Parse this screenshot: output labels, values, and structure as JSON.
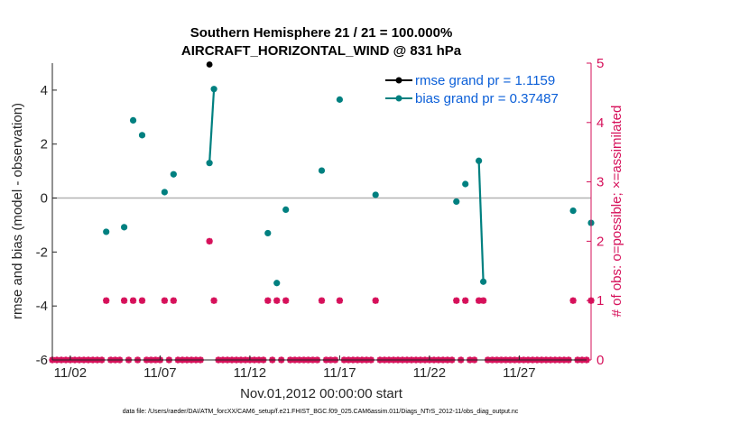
{
  "chart_data": {
    "type": "scatter",
    "title_line1": "Southern Hemisphere 21 / 21 = 100.000%",
    "title_line2": "AIRCRAFT_HORIZONTAL_WIND @ 831 hPa",
    "xlabel": "Nov.01,2012 00:00:00 start",
    "ylabel_left": "rmse and bias (model - observation)",
    "ylabel_right": "# of obs: o=possible; ×=assimilated",
    "footer": "data file: /Users/raeder/DAI/ATM_forcXX/CAM6_setup/f.e21.FHIST_BGC.f09_025.CAM6assim.011/Diags_NTrS_2012-11/obs_diag_output.nc",
    "xlim": [
      0.5,
      30.5
    ],
    "ylim_left": [
      -6,
      5
    ],
    "ylim_right": [
      0,
      5
    ],
    "x_ticks": [
      1.5,
      6.5,
      11.5,
      16.5,
      21.5,
      26.5
    ],
    "x_tick_labels": [
      "11/02",
      "11/07",
      "11/12",
      "11/17",
      "11/22",
      "11/27"
    ],
    "y_ticks_left": [
      -6,
      -4,
      -2,
      0,
      2,
      4
    ],
    "y_tick_labels_left": [
      "-6",
      "-4",
      "-2",
      "0",
      "2",
      "4"
    ],
    "y_ticks_right": [
      0,
      1,
      2,
      3,
      4,
      5
    ],
    "y_tick_labels_right": [
      "0",
      "1",
      "2",
      "3",
      "4",
      "5"
    ],
    "zero_line": 0,
    "legend_position": "top-right",
    "colors": {
      "rmse": "#000000",
      "bias": "#008080",
      "obs": "#d6105a",
      "zero": "#b3b3b3",
      "legend_text": "#0b5fd8",
      "axis": "#262626"
    },
    "series": [
      {
        "name": "rmse grand pr = 1.1159",
        "kind": "rmse",
        "points": [
          [
            9.25,
            4.95
          ]
        ]
      },
      {
        "name": "bias grand pr = 0.37487",
        "kind": "bias",
        "segments": [
          [
            [
              3.5,
              -1.25
            ]
          ],
          [
            [
              4.5,
              -1.08
            ]
          ],
          [
            [
              5.0,
              2.88
            ]
          ],
          [
            [
              5.5,
              2.33
            ]
          ],
          [
            [
              6.75,
              0.22
            ]
          ],
          [
            [
              7.25,
              0.88
            ]
          ],
          [
            [
              9.25,
              1.3
            ],
            [
              9.5,
              4.04
            ]
          ],
          [
            [
              12.5,
              -1.3
            ]
          ],
          [
            [
              13.0,
              -3.15
            ]
          ],
          [
            [
              13.5,
              -0.43
            ]
          ],
          [
            [
              15.5,
              1.02
            ]
          ],
          [
            [
              16.5,
              3.65
            ]
          ],
          [
            [
              18.5,
              0.12
            ]
          ],
          [
            [
              23.0,
              -0.13
            ]
          ],
          [
            [
              23.5,
              0.52
            ]
          ],
          [
            [
              24.25,
              1.38
            ],
            [
              24.5,
              -3.1
            ]
          ],
          [
            [
              29.5,
              -0.47
            ]
          ],
          [
            [
              30.5,
              -0.92
            ]
          ]
        ]
      },
      {
        "name": "obs possible",
        "kind": "obs_possible",
        "points": [
          [
            0.5,
            0
          ],
          [
            0.75,
            0
          ],
          [
            1.0,
            0
          ],
          [
            1.25,
            0
          ],
          [
            1.5,
            0
          ],
          [
            1.75,
            0
          ],
          [
            2.0,
            0
          ],
          [
            2.25,
            0
          ],
          [
            2.5,
            0
          ],
          [
            2.75,
            0
          ],
          [
            3.0,
            0
          ],
          [
            3.25,
            0
          ],
          [
            3.5,
            1
          ],
          [
            3.75,
            0
          ],
          [
            4.0,
            0
          ],
          [
            4.25,
            0
          ],
          [
            4.5,
            1
          ],
          [
            4.75,
            0
          ],
          [
            5.0,
            1
          ],
          [
            5.25,
            0
          ],
          [
            5.5,
            1
          ],
          [
            5.75,
            0
          ],
          [
            6.0,
            0
          ],
          [
            6.25,
            0
          ],
          [
            6.5,
            0
          ],
          [
            6.75,
            1
          ],
          [
            7.0,
            0
          ],
          [
            7.25,
            1
          ],
          [
            7.5,
            0
          ],
          [
            7.75,
            0
          ],
          [
            8.0,
            0
          ],
          [
            8.25,
            0
          ],
          [
            8.5,
            0
          ],
          [
            8.75,
            0
          ],
          [
            9.25,
            2
          ],
          [
            9.5,
            1
          ],
          [
            9.75,
            0
          ],
          [
            10.0,
            0
          ],
          [
            10.25,
            0
          ],
          [
            10.5,
            0
          ],
          [
            10.75,
            0
          ],
          [
            11.0,
            0
          ],
          [
            11.25,
            0
          ],
          [
            11.5,
            0
          ],
          [
            11.75,
            0
          ],
          [
            12.0,
            0
          ],
          [
            12.25,
            0
          ],
          [
            12.5,
            1
          ],
          [
            12.75,
            0
          ],
          [
            13.0,
            1
          ],
          [
            13.25,
            0
          ],
          [
            13.5,
            1
          ],
          [
            13.75,
            0
          ],
          [
            14.0,
            0
          ],
          [
            14.25,
            0
          ],
          [
            14.5,
            0
          ],
          [
            14.75,
            0
          ],
          [
            15.0,
            0
          ],
          [
            15.25,
            0
          ],
          [
            15.5,
            1
          ],
          [
            15.75,
            0
          ],
          [
            16.0,
            0
          ],
          [
            16.25,
            0
          ],
          [
            16.5,
            1
          ],
          [
            16.75,
            0
          ],
          [
            17.0,
            0
          ],
          [
            17.25,
            0
          ],
          [
            17.5,
            0
          ],
          [
            17.75,
            0
          ],
          [
            18.0,
            0
          ],
          [
            18.25,
            0
          ],
          [
            18.5,
            1
          ],
          [
            18.75,
            0
          ],
          [
            19.0,
            0
          ],
          [
            19.25,
            0
          ],
          [
            19.5,
            0
          ],
          [
            19.75,
            0
          ],
          [
            20.0,
            0
          ],
          [
            20.25,
            0
          ],
          [
            20.5,
            0
          ],
          [
            20.75,
            0
          ],
          [
            21.0,
            0
          ],
          [
            21.25,
            0
          ],
          [
            21.5,
            0
          ],
          [
            21.75,
            0
          ],
          [
            22.0,
            0
          ],
          [
            22.25,
            0
          ],
          [
            22.5,
            0
          ],
          [
            22.75,
            0
          ],
          [
            23.0,
            1
          ],
          [
            23.25,
            0
          ],
          [
            23.5,
            1
          ],
          [
            23.75,
            0
          ],
          [
            24.0,
            0
          ],
          [
            24.25,
            1
          ],
          [
            24.5,
            1
          ],
          [
            24.75,
            0
          ],
          [
            25.0,
            0
          ],
          [
            25.25,
            0
          ],
          [
            25.5,
            0
          ],
          [
            25.75,
            0
          ],
          [
            26.0,
            0
          ],
          [
            26.25,
            0
          ],
          [
            26.5,
            0
          ],
          [
            26.75,
            0
          ],
          [
            27.0,
            0
          ],
          [
            27.25,
            0
          ],
          [
            27.5,
            0
          ],
          [
            27.75,
            0
          ],
          [
            28.0,
            0
          ],
          [
            28.25,
            0
          ],
          [
            28.5,
            0
          ],
          [
            28.75,
            0
          ],
          [
            29.0,
            0
          ],
          [
            29.25,
            0
          ],
          [
            29.5,
            1
          ],
          [
            29.75,
            0
          ],
          [
            30.0,
            0
          ],
          [
            30.25,
            0
          ],
          [
            30.5,
            1
          ]
        ]
      }
    ]
  }
}
